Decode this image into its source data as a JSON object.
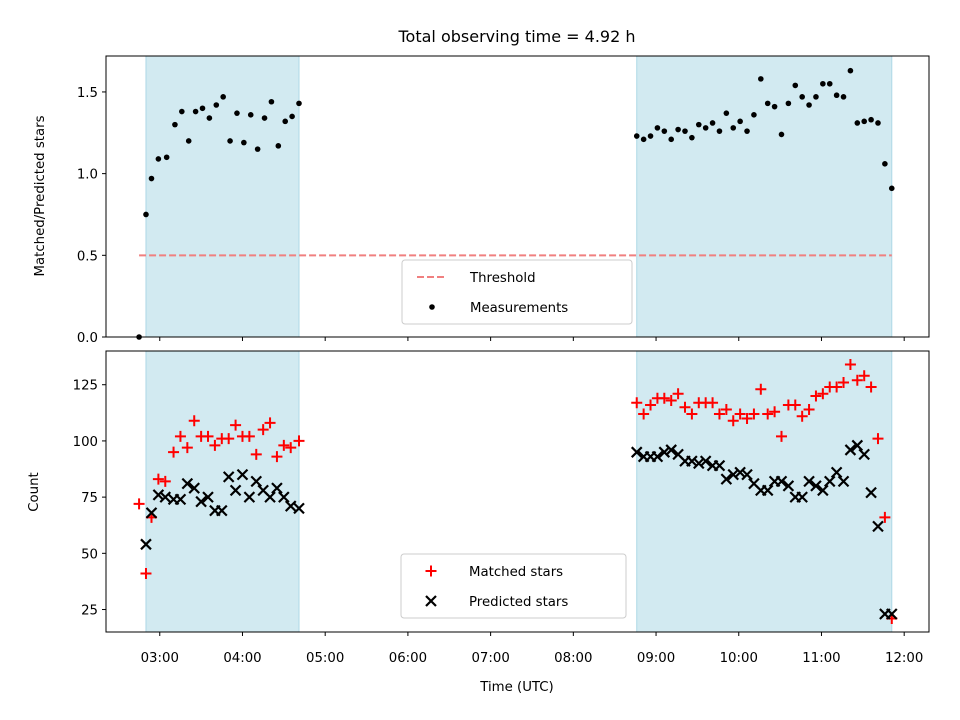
{
  "title": "Total observing time = 4.92 h",
  "chart_data": [
    {
      "type": "scatter",
      "panel": "top",
      "ylabel": "Matched/Predicted stars",
      "xlabel": "",
      "ylim": [
        0,
        1.72
      ],
      "yticks": [
        0.0,
        0.5,
        1.0,
        1.5
      ],
      "ytick_labels": [
        "0.0",
        "0.5",
        "1.0",
        "1.5"
      ],
      "xlim_hours": [
        2.35,
        12.3
      ],
      "shaded_intervals": [
        [
          "02:50",
          "04:41"
        ],
        [
          "08:46",
          "11:51"
        ]
      ],
      "shade_color": "#add8e6",
      "threshold": {
        "name": "Threshold",
        "value": 0.5,
        "x_range": [
          "02:45",
          "11:51"
        ],
        "color": "#f08080",
        "style": "dashed"
      },
      "series": [
        {
          "name": "Measurements",
          "marker": "dot",
          "color": "#000000",
          "points": [
            [
              "02:45",
              0.0
            ],
            [
              "02:50",
              0.75
            ],
            [
              "02:54",
              0.97
            ],
            [
              "02:59",
              1.09
            ],
            [
              "03:05",
              1.1
            ],
            [
              "03:11",
              1.3
            ],
            [
              "03:16",
              1.38
            ],
            [
              "03:21",
              1.2
            ],
            [
              "03:26",
              1.38
            ],
            [
              "03:31",
              1.4
            ],
            [
              "03:36",
              1.34
            ],
            [
              "03:41",
              1.42
            ],
            [
              "03:46",
              1.47
            ],
            [
              "03:51",
              1.2
            ],
            [
              "03:56",
              1.37
            ],
            [
              "04:01",
              1.19
            ],
            [
              "04:06",
              1.36
            ],
            [
              "04:11",
              1.15
            ],
            [
              "04:16",
              1.34
            ],
            [
              "04:21",
              1.44
            ],
            [
              "04:26",
              1.17
            ],
            [
              "04:31",
              1.32
            ],
            [
              "04:36",
              1.35
            ],
            [
              "04:41",
              1.43
            ],
            [
              "08:46",
              1.23
            ],
            [
              "08:51",
              1.21
            ],
            [
              "08:56",
              1.23
            ],
            [
              "09:01",
              1.28
            ],
            [
              "09:06",
              1.26
            ],
            [
              "09:11",
              1.21
            ],
            [
              "09:16",
              1.27
            ],
            [
              "09:21",
              1.26
            ],
            [
              "09:26",
              1.22
            ],
            [
              "09:31",
              1.3
            ],
            [
              "09:36",
              1.28
            ],
            [
              "09:41",
              1.31
            ],
            [
              "09:46",
              1.26
            ],
            [
              "09:51",
              1.37
            ],
            [
              "09:56",
              1.28
            ],
            [
              "10:01",
              1.32
            ],
            [
              "10:06",
              1.26
            ],
            [
              "10:11",
              1.36
            ],
            [
              "10:16",
              1.58
            ],
            [
              "10:21",
              1.43
            ],
            [
              "10:26",
              1.41
            ],
            [
              "10:31",
              1.24
            ],
            [
              "10:36",
              1.43
            ],
            [
              "10:41",
              1.54
            ],
            [
              "10:46",
              1.47
            ],
            [
              "10:51",
              1.42
            ],
            [
              "10:56",
              1.47
            ],
            [
              "11:01",
              1.55
            ],
            [
              "11:06",
              1.55
            ],
            [
              "11:11",
              1.48
            ],
            [
              "11:16",
              1.47
            ],
            [
              "11:21",
              1.63
            ],
            [
              "11:26",
              1.31
            ],
            [
              "11:31",
              1.32
            ],
            [
              "11:36",
              1.33
            ],
            [
              "11:41",
              1.31
            ],
            [
              "11:46",
              1.06
            ],
            [
              "11:51",
              0.91
            ]
          ]
        }
      ],
      "legend": {
        "placement": "lower center",
        "entries": [
          "Threshold",
          "Measurements"
        ]
      }
    },
    {
      "type": "scatter",
      "panel": "bottom",
      "ylabel": "Count",
      "xlabel": "Time (UTC)",
      "ylim": [
        15,
        140
      ],
      "yticks": [
        25,
        50,
        75,
        100,
        125
      ],
      "ytick_labels": [
        "25",
        "50",
        "75",
        "100",
        "125"
      ],
      "xlim_hours": [
        2.35,
        12.3
      ],
      "xticks": [
        "03:00",
        "04:00",
        "05:00",
        "06:00",
        "07:00",
        "08:00",
        "09:00",
        "10:00",
        "11:00",
        "12:00"
      ],
      "shaded_intervals": [
        [
          "02:50",
          "04:41"
        ],
        [
          "08:46",
          "11:51"
        ]
      ],
      "shade_color": "#add8e6",
      "series": [
        {
          "name": "Matched stars",
          "marker": "plus",
          "color": "#ff0000",
          "points": [
            [
              "02:45",
              72
            ],
            [
              "02:50",
              41
            ],
            [
              "02:54",
              66
            ],
            [
              "02:59",
              83
            ],
            [
              "03:04",
              82
            ],
            [
              "03:10",
              95
            ],
            [
              "03:15",
              102
            ],
            [
              "03:20",
              97
            ],
            [
              "03:25",
              109
            ],
            [
              "03:30",
              102
            ],
            [
              "03:35",
              102
            ],
            [
              "03:40",
              98
            ],
            [
              "03:45",
              101
            ],
            [
              "03:50",
              101
            ],
            [
              "03:55",
              107
            ],
            [
              "04:00",
              102
            ],
            [
              "04:05",
              102
            ],
            [
              "04:10",
              94
            ],
            [
              "04:15",
              105
            ],
            [
              "04:20",
              108
            ],
            [
              "04:25",
              93
            ],
            [
              "04:30",
              98
            ],
            [
              "04:35",
              97
            ],
            [
              "04:41",
              100
            ],
            [
              "08:46",
              117
            ],
            [
              "08:51",
              112
            ],
            [
              "08:56",
              116
            ],
            [
              "09:01",
              119
            ],
            [
              "09:06",
              119
            ],
            [
              "09:11",
              118
            ],
            [
              "09:16",
              121
            ],
            [
              "09:21",
              115
            ],
            [
              "09:26",
              112
            ],
            [
              "09:31",
              117
            ],
            [
              "09:36",
              117
            ],
            [
              "09:41",
              117
            ],
            [
              "09:46",
              112
            ],
            [
              "09:51",
              114
            ],
            [
              "09:56",
              109
            ],
            [
              "10:01",
              112
            ],
            [
              "10:06",
              110
            ],
            [
              "10:11",
              112
            ],
            [
              "10:16",
              123
            ],
            [
              "10:21",
              112
            ],
            [
              "10:26",
              113
            ],
            [
              "10:31",
              102
            ],
            [
              "10:36",
              116
            ],
            [
              "10:41",
              116
            ],
            [
              "10:46",
              111
            ],
            [
              "10:51",
              114
            ],
            [
              "10:56",
              120
            ],
            [
              "11:01",
              121
            ],
            [
              "11:06",
              124
            ],
            [
              "11:11",
              124
            ],
            [
              "11:16",
              126
            ],
            [
              "11:21",
              134
            ],
            [
              "11:26",
              127
            ],
            [
              "11:31",
              129
            ],
            [
              "11:36",
              124
            ],
            [
              "11:41",
              101
            ],
            [
              "11:46",
              66
            ],
            [
              "11:51",
              21
            ]
          ]
        },
        {
          "name": "Predicted stars",
          "marker": "x",
          "color": "#000000",
          "points": [
            [
              "02:50",
              54
            ],
            [
              "02:54",
              68
            ],
            [
              "02:59",
              76
            ],
            [
              "03:04",
              75
            ],
            [
              "03:10",
              74
            ],
            [
              "03:15",
              74
            ],
            [
              "03:20",
              81
            ],
            [
              "03:25",
              79
            ],
            [
              "03:30",
              73
            ],
            [
              "03:35",
              75
            ],
            [
              "03:40",
              69
            ],
            [
              "03:45",
              69
            ],
            [
              "03:50",
              84
            ],
            [
              "03:55",
              78
            ],
            [
              "04:00",
              85
            ],
            [
              "04:05",
              75
            ],
            [
              "04:10",
              82
            ],
            [
              "04:15",
              78
            ],
            [
              "04:20",
              75
            ],
            [
              "04:25",
              79
            ],
            [
              "04:30",
              75
            ],
            [
              "04:35",
              71
            ],
            [
              "04:41",
              70
            ],
            [
              "08:46",
              95
            ],
            [
              "08:51",
              93
            ],
            [
              "08:56",
              93
            ],
            [
              "09:01",
              93
            ],
            [
              "09:06",
              95
            ],
            [
              "09:11",
              96
            ],
            [
              "09:16",
              94
            ],
            [
              "09:21",
              91
            ],
            [
              "09:26",
              91
            ],
            [
              "09:31",
              90
            ],
            [
              "09:36",
              91
            ],
            [
              "09:41",
              89
            ],
            [
              "09:46",
              89
            ],
            [
              "09:51",
              83
            ],
            [
              "09:56",
              85
            ],
            [
              "10:01",
              86
            ],
            [
              "10:06",
              85
            ],
            [
              "10:11",
              81
            ],
            [
              "10:16",
              78
            ],
            [
              "10:21",
              78
            ],
            [
              "10:26",
              82
            ],
            [
              "10:31",
              82
            ],
            [
              "10:36",
              80
            ],
            [
              "10:41",
              75
            ],
            [
              "10:46",
              75
            ],
            [
              "10:51",
              82
            ],
            [
              "10:56",
              80
            ],
            [
              "11:01",
              78
            ],
            [
              "11:06",
              82
            ],
            [
              "11:11",
              86
            ],
            [
              "11:16",
              82
            ],
            [
              "11:21",
              96
            ],
            [
              "11:26",
              98
            ],
            [
              "11:31",
              94
            ],
            [
              "11:36",
              77
            ],
            [
              "11:41",
              62
            ],
            [
              "11:46",
              23
            ],
            [
              "11:51",
              23
            ]
          ]
        }
      ],
      "legend": {
        "placement": "lower center",
        "entries": [
          "Matched stars",
          "Predicted stars"
        ]
      }
    }
  ]
}
